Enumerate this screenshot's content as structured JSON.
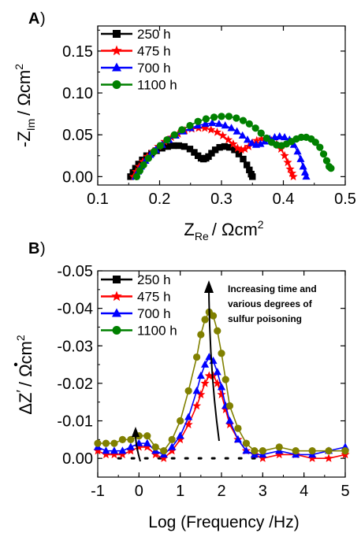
{
  "chart_data": [
    {
      "type": "scatter",
      "panel_label": "A)",
      "xlabel_main": "Z",
      "xlabel_sub": "Re",
      "xlabel_tail": "/ Ωcm",
      "xlabel_sup": "2",
      "ylabel_main": "-Z",
      "ylabel_sub": "Im",
      "ylabel_tail": "/ Ωcm",
      "ylabel_sup": "2",
      "xlim": [
        0.1,
        0.5
      ],
      "ylim": [
        -0.01,
        0.18
      ],
      "xticks": [
        "0.1",
        "0.2",
        "0.3",
        "0.4",
        "0.5"
      ],
      "yticks": [
        "0.00",
        "0.05",
        "0.10",
        "0.15"
      ],
      "legend_position": "top-left",
      "series": [
        {
          "name": "250 h",
          "color": "#000000",
          "marker": "square",
          "x": [
            0.153,
            0.157,
            0.161,
            0.166,
            0.172,
            0.179,
            0.187,
            0.195,
            0.204,
            0.213,
            0.222,
            0.231,
            0.24,
            0.249,
            0.256,
            0.262,
            0.267,
            0.271,
            0.275,
            0.279,
            0.284,
            0.29,
            0.297,
            0.305,
            0.313,
            0.321,
            0.328,
            0.335,
            0.341,
            0.345,
            0.348,
            0.35
          ],
          "y": [
            0.0,
            0.005,
            0.01,
            0.015,
            0.02,
            0.025,
            0.028,
            0.031,
            0.034,
            0.036,
            0.037,
            0.037,
            0.036,
            0.033,
            0.029,
            0.025,
            0.022,
            0.021,
            0.022,
            0.024,
            0.028,
            0.032,
            0.035,
            0.036,
            0.035,
            0.032,
            0.027,
            0.021,
            0.014,
            0.008,
            0.003,
            0.0
          ]
        },
        {
          "name": "475 h",
          "color": "#ff0000",
          "marker": "star",
          "x": [
            0.158,
            0.162,
            0.167,
            0.173,
            0.18,
            0.189,
            0.198,
            0.208,
            0.219,
            0.23,
            0.241,
            0.252,
            0.263,
            0.273,
            0.283,
            0.293,
            0.302,
            0.311,
            0.319,
            0.326,
            0.332,
            0.338,
            0.344,
            0.35,
            0.357,
            0.365,
            0.373,
            0.381,
            0.389,
            0.396,
            0.402,
            0.407,
            0.411,
            0.414,
            0.416
          ],
          "y": [
            0.0,
            0.006,
            0.012,
            0.018,
            0.024,
            0.03,
            0.036,
            0.042,
            0.047,
            0.051,
            0.055,
            0.057,
            0.058,
            0.058,
            0.056,
            0.053,
            0.049,
            0.044,
            0.039,
            0.034,
            0.032,
            0.033,
            0.036,
            0.04,
            0.043,
            0.045,
            0.045,
            0.043,
            0.039,
            0.033,
            0.025,
            0.017,
            0.009,
            0.004,
            0.0
          ]
        },
        {
          "name": "700 h",
          "color": "#0000ff",
          "marker": "triangle",
          "x": [
            0.161,
            0.165,
            0.17,
            0.177,
            0.185,
            0.194,
            0.204,
            0.215,
            0.226,
            0.238,
            0.25,
            0.262,
            0.274,
            0.285,
            0.296,
            0.306,
            0.316,
            0.325,
            0.334,
            0.342,
            0.349,
            0.356,
            0.363,
            0.37,
            0.378,
            0.386,
            0.394,
            0.402,
            0.41,
            0.417,
            0.423,
            0.428,
            0.432,
            0.435,
            0.437
          ],
          "y": [
            0.0,
            0.006,
            0.012,
            0.019,
            0.026,
            0.032,
            0.038,
            0.044,
            0.049,
            0.054,
            0.058,
            0.061,
            0.063,
            0.064,
            0.063,
            0.061,
            0.058,
            0.054,
            0.049,
            0.044,
            0.04,
            0.038,
            0.039,
            0.042,
            0.045,
            0.047,
            0.048,
            0.047,
            0.044,
            0.038,
            0.03,
            0.021,
            0.012,
            0.005,
            0.0
          ]
        },
        {
          "name": "1100 h",
          "color": "#008000",
          "marker": "circle",
          "x": [
            0.163,
            0.168,
            0.174,
            0.182,
            0.191,
            0.201,
            0.212,
            0.224,
            0.236,
            0.249,
            0.262,
            0.275,
            0.288,
            0.3,
            0.312,
            0.324,
            0.335,
            0.345,
            0.355,
            0.364,
            0.373,
            0.381,
            0.389,
            0.397,
            0.405,
            0.413,
            0.421,
            0.429,
            0.437,
            0.445,
            0.452,
            0.459,
            0.465,
            0.47,
            0.474,
            0.477
          ],
          "y": [
            0.0,
            0.007,
            0.014,
            0.022,
            0.03,
            0.037,
            0.044,
            0.05,
            0.056,
            0.061,
            0.066,
            0.069,
            0.071,
            0.072,
            0.072,
            0.07,
            0.067,
            0.063,
            0.058,
            0.052,
            0.046,
            0.041,
            0.038,
            0.037,
            0.039,
            0.042,
            0.045,
            0.047,
            0.047,
            0.045,
            0.041,
            0.035,
            0.027,
            0.019,
            0.012,
            0.01
          ]
        }
      ]
    },
    {
      "type": "scatter",
      "panel_label": "B)",
      "xlabel": "Log (Frequency /Hz)",
      "ylabel_main": "ΔZ",
      "ylabel_sup": "′",
      "ylabel_tail": "/ Ωcm",
      "ylabel_sup2": "2",
      "xlim": [
        -1,
        5
      ],
      "ylim": [
        0.005,
        -0.05
      ],
      "xticks": [
        "-1",
        "0",
        "1",
        "2",
        "3",
        "4",
        "5"
      ],
      "yticks": [
        "0.00",
        "-0.01",
        "-0.02",
        "-0.03",
        "-0.04",
        "-0.05"
      ],
      "legend_position": "top-left",
      "annotation": "Increasing time and various degrees of sulfur poisoning",
      "annotation_lines": [
        "Increasing time and",
        "various degrees of",
        "sulfur poisoning"
      ],
      "series": [
        {
          "name": "250 h",
          "color": "#000000",
          "marker": "square",
          "dotted": true,
          "x": [
            -0.5,
            0.0,
            0.5,
            1.0,
            1.5,
            2.0,
            2.5,
            3.0
          ],
          "y": [
            0.0,
            0.0,
            0.0,
            0.0,
            0.0,
            0.0,
            0.0,
            0.0
          ]
        },
        {
          "name": "475 h",
          "color": "#ff0000",
          "marker": "star",
          "x": [
            -1.0,
            -0.8,
            -0.6,
            -0.4,
            -0.2,
            0.0,
            0.2,
            0.4,
            0.6,
            0.8,
            1.0,
            1.2,
            1.4,
            1.5,
            1.6,
            1.7,
            1.8,
            1.9,
            2.0,
            2.1,
            2.2,
            2.4,
            2.6,
            2.8,
            3.0,
            3.4,
            3.8,
            4.2,
            4.6,
            5.0
          ],
          "y": [
            -0.002,
            -0.001,
            -0.001,
            -0.001,
            -0.002,
            -0.003,
            -0.003,
            -0.001,
            0.0,
            -0.002,
            -0.005,
            -0.009,
            -0.014,
            -0.017,
            -0.02,
            -0.022,
            -0.022,
            -0.02,
            -0.017,
            -0.013,
            -0.009,
            -0.005,
            -0.002,
            -0.001,
            0.0,
            -0.001,
            -0.001,
            0.0,
            0.0,
            -0.001
          ]
        },
        {
          "name": "700 h",
          "color": "#0000ff",
          "marker": "triangle",
          "x": [
            -1.0,
            -0.8,
            -0.6,
            -0.4,
            -0.2,
            0.0,
            0.2,
            0.4,
            0.6,
            0.8,
            1.0,
            1.2,
            1.4,
            1.5,
            1.6,
            1.7,
            1.8,
            1.9,
            2.0,
            2.1,
            2.2,
            2.4,
            2.6,
            2.8,
            3.0,
            3.4,
            3.8,
            4.2,
            4.6,
            5.0
          ],
          "y": [
            -0.003,
            -0.002,
            -0.002,
            -0.002,
            -0.003,
            -0.004,
            -0.004,
            -0.002,
            -0.001,
            -0.003,
            -0.006,
            -0.011,
            -0.018,
            -0.022,
            -0.025,
            -0.027,
            -0.026,
            -0.023,
            -0.019,
            -0.014,
            -0.01,
            -0.005,
            -0.002,
            -0.001,
            -0.001,
            -0.002,
            -0.001,
            -0.001,
            -0.002,
            -0.003
          ]
        },
        {
          "name": "1100 h",
          "color": "#008000",
          "marker": "circle",
          "x": [
            -1.0,
            -0.8,
            -0.6,
            -0.4,
            -0.2,
            0.0,
            0.2,
            0.4,
            0.6,
            0.8,
            1.0,
            1.2,
            1.4,
            1.5,
            1.6,
            1.7,
            1.8,
            1.9,
            2.0,
            2.1,
            2.2,
            2.4,
            2.6,
            2.8,
            3.0,
            3.4,
            3.8,
            4.2,
            4.6,
            5.0
          ],
          "y": [
            -0.004,
            -0.004,
            -0.004,
            -0.005,
            -0.005,
            -0.006,
            -0.006,
            -0.003,
            -0.002,
            -0.005,
            -0.01,
            -0.018,
            -0.027,
            -0.033,
            -0.037,
            -0.039,
            -0.038,
            -0.034,
            -0.028,
            -0.021,
            -0.014,
            -0.008,
            -0.004,
            -0.002,
            -0.002,
            -0.003,
            -0.002,
            -0.002,
            -0.002,
            -0.002
          ]
        }
      ]
    }
  ],
  "colors": {
    "series_green_b": "#808000"
  }
}
